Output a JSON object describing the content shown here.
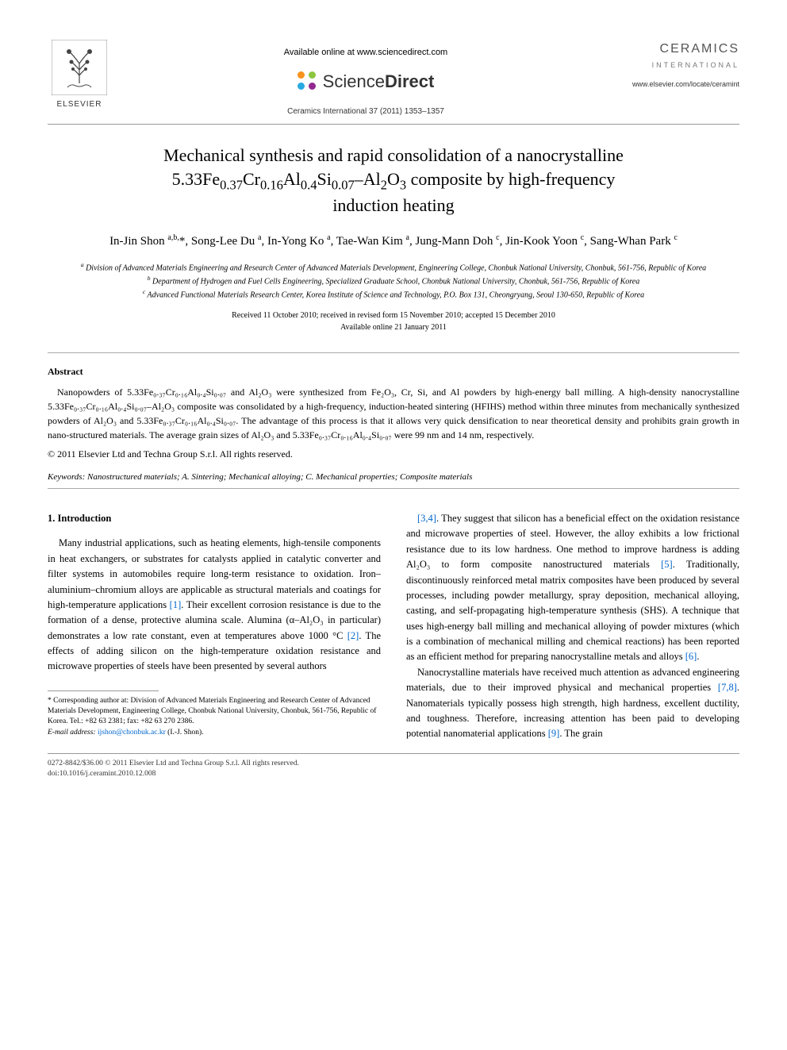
{
  "header": {
    "publisher_label": "ELSEVIER",
    "available_text": "Available online at www.sciencedirect.com",
    "sd_brand_light": "Science",
    "sd_brand_bold": "Direct",
    "sd_colors": [
      "#f7931e",
      "#8cc63f",
      "#29abe2",
      "#93278f"
    ],
    "journal_ref": "Ceramics International 37 (2011) 1353–1357",
    "journal_logo_title": "CERAMICS",
    "journal_logo_subtitle": "INTERNATIONAL",
    "journal_url": "www.elsevier.com/locate/ceramint"
  },
  "article": {
    "title_line1": "Mechanical synthesis and rapid consolidation of a nanocrystalline",
    "title_line2_pre": "5.33Fe",
    "title_sub1": "0.37",
    "title_mid1": "Cr",
    "title_sub2": "0.16",
    "title_mid2": "Al",
    "title_sub3": "0.4",
    "title_mid3": "Si",
    "title_sub4": "0.07",
    "title_mid4": "–Al",
    "title_sub5": "2",
    "title_mid5": "O",
    "title_sub6": "3",
    "title_line2_post": " composite by high-frequency",
    "title_line3": "induction heating",
    "authors_html": "In-Jin Shon <sup>a,b,</sup>*, Song-Lee Du <sup>a</sup>, In-Yong Ko <sup>a</sup>, Tae-Wan Kim <sup>a</sup>, Jung-Mann Doh <sup>c</sup>, Jin-Kook Yoon <sup>c</sup>, Sang-Whan Park <sup>c</sup>",
    "affiliations": {
      "a": "Division of Advanced Materials Engineering and Research Center of Advanced Materials Development, Engineering College, Chonbuk National University, Chonbuk, 561-756, Republic of Korea",
      "b": "Department of Hydrogen and Fuel Cells Engineering, Specialized Graduate School, Chonbuk National University, Chonbuk, 561-756, Republic of Korea",
      "c": "Advanced Functional Materials Research Center, Korea Institute of Science and Technology, P.O. Box 131, Cheongryang, Seoul 130-650, Republic of Korea"
    },
    "dates_line1": "Received 11 October 2010; received in revised form 15 November 2010; accepted 15 December 2010",
    "dates_line2": "Available online 21 January 2011"
  },
  "abstract": {
    "heading": "Abstract",
    "body": "Nanopowders of 5.33Fe₀.₃₇Cr₀.₁₆Al₀.₄Si₀.₀₇ and Al₂O₃ were synthesized from Fe₂O₃, Cr, Si, and Al powders by high-energy ball milling. A high-density nanocrystalline 5.33Fe₀.₃₇Cr₀.₁₆Al₀.₄Si₀.₀₇–Al₂O₃ composite was consolidated by a high-frequency, induction-heated sintering (HFIHS) method within three minutes from mechanically synthesized powders of Al₂O₃ and 5.33Fe₀.₃₇Cr₀.₁₆Al₀.₄Si₀.₀₇. The advantage of this process is that it allows very quick densification to near theoretical density and prohibits grain growth in nano-structured materials. The average grain sizes of Al₂O₃ and 5.33Fe₀.₃₇Cr₀.₁₆Al₀.₄Si₀.₀₇ were 99 nm and 14 nm, respectively.",
    "copyright": "© 2011 Elsevier Ltd and Techna Group S.r.l. All rights reserved.",
    "keywords_label": "Keywords:",
    "keywords_text": " Nanostructured materials; A. Sintering; Mechanical alloying; C. Mechanical properties; Composite materials"
  },
  "body": {
    "section1_heading": "1. Introduction",
    "col1_p1": "Many industrial applications, such as heating elements, high-tensile components in heat exchangers, or substrates for catalysts applied in catalytic converter and filter systems in automobiles require long-term resistance to oxidation. Iron–aluminium–chromium alloys are applicable as structural materials and coatings for high-temperature applications [1]. Their excellent corrosion resistance is due to the formation of a dense, protective alumina scale. Alumina (α–Al₂O₃ in particular) demonstrates a low rate constant, even at temperatures above 1000 °C [2]. The effects of adding silicon on the high-temperature oxidation resistance and microwave properties of steels have been presented by several authors",
    "col2_p1": "[3,4]. They suggest that silicon has a beneficial effect on the oxidation resistance and microwave properties of steel. However, the alloy exhibits a low frictional resistance due to its low hardness. One method to improve hardness is adding Al₂O₃ to form composite nanostructured materials [5]. Traditionally, discontinuously reinforced metal matrix composites have been produced by several processes, including powder metallurgy, spray deposition, mechanical alloying, casting, and self-propagating high-temperature synthesis (SHS). A technique that uses high-energy ball milling and mechanical alloying of powder mixtures (which is a combination of mechanical milling and chemical reactions) has been reported as an efficient method for preparing nanocrystalline metals and alloys [6].",
    "col2_p2": "Nanocrystalline materials have received much attention as advanced engineering materials, due to their improved physical and mechanical properties [7,8]. Nanomaterials typically possess high strength, high hardness, excellent ductility, and toughness. Therefore, increasing attention has been paid to developing potential nanomaterial applications [9]. The grain",
    "refs": {
      "r1": "[1]",
      "r2": "[2]",
      "r34": "[3,4]",
      "r5": "[5]",
      "r6": "[6]",
      "r78": "[7,8]",
      "r9": "[9]"
    }
  },
  "footnote": {
    "corr_label": "* Corresponding author at: Division of Advanced Materials Engineering and Research Center of Advanced Materials Development, Engineering College, Chonbuk National University, Chonbuk, 561-756, Republic of Korea. Tel.: +82 63 2381; fax: +82 63 270 2386.",
    "email_label": "E-mail address:",
    "email": "ijshon@chonbuk.ac.kr",
    "email_suffix": " (I.-J. Shon)."
  },
  "footer": {
    "line1": "0272-8842/$36.00 © 2011 Elsevier Ltd and Techna Group S.r.l. All rights reserved.",
    "line2": "doi:10.1016/j.ceramint.2010.12.008"
  },
  "colors": {
    "link": "#0066cc",
    "text": "#000000",
    "rule": "#999999"
  }
}
